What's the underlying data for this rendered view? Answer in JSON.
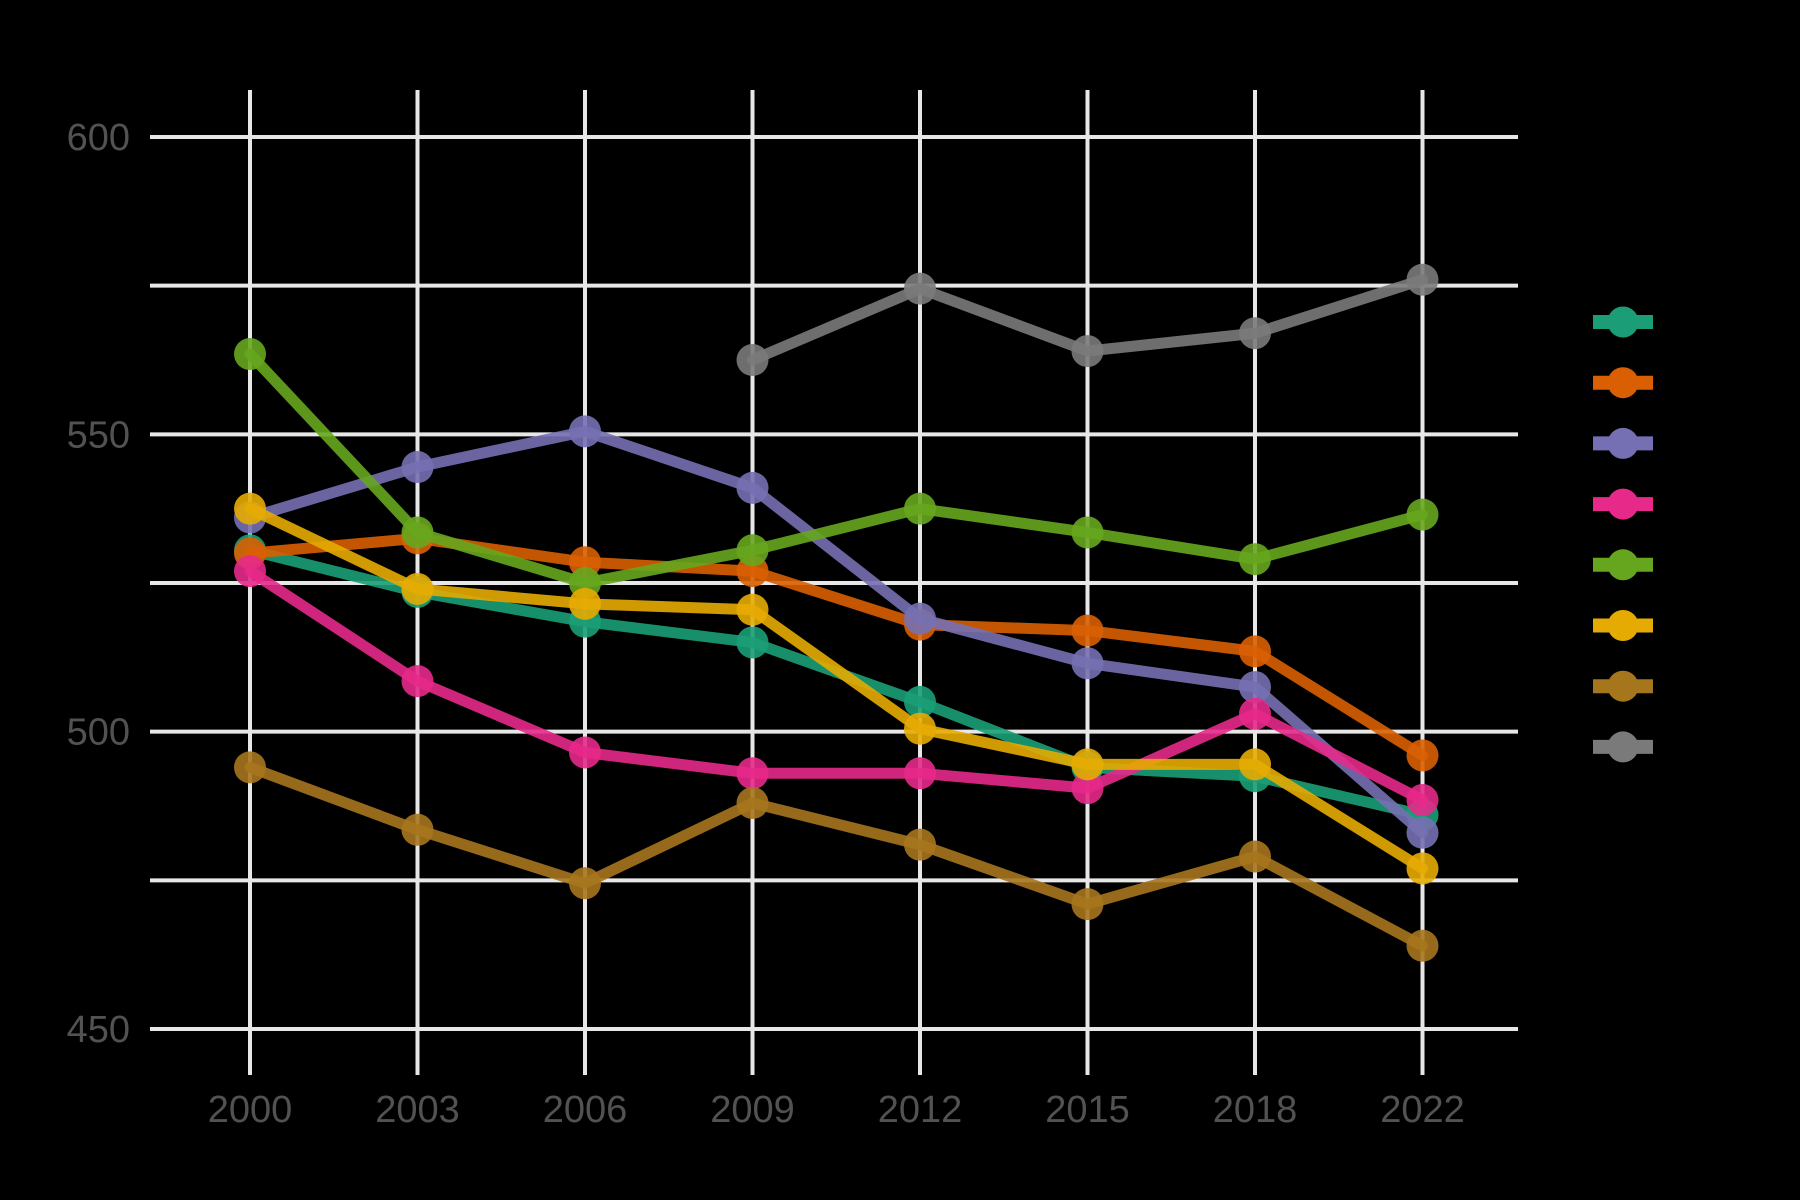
{
  "figure": {
    "background_color": "#000000",
    "gridline_color": "#e7e7e7",
    "axis_text_color": "#525252"
  },
  "axes": {
    "x": {
      "tick_labels": [
        "2000",
        "2003",
        "2006",
        "2009",
        "2012",
        "2015",
        "2018",
        "2022"
      ]
    },
    "y": {
      "tick_labels": [
        "600",
        "550",
        "500",
        "450"
      ],
      "tick_values": [
        600,
        550,
        500,
        450
      ],
      "gridline_values": [
        600,
        575,
        550,
        525,
        500,
        475,
        450
      ]
    }
  },
  "legend": {
    "position": "right",
    "labels_visible": false,
    "items": [
      {
        "name": "teal",
        "color": "#1B9E77"
      },
      {
        "name": "orange",
        "color": "#D95F02"
      },
      {
        "name": "purple",
        "color": "#7570B3"
      },
      {
        "name": "magenta",
        "color": "#E7298A"
      },
      {
        "name": "green",
        "color": "#66A61E"
      },
      {
        "name": "yellow",
        "color": "#E6AB02"
      },
      {
        "name": "brown",
        "color": "#A6761D"
      },
      {
        "name": "gray",
        "color": "#7A7A7A"
      }
    ]
  },
  "chart_data": {
    "type": "line",
    "title": "",
    "xlabel": "",
    "ylabel": "",
    "x": [
      2000,
      2003,
      2006,
      2009,
      2012,
      2015,
      2018,
      2022
    ],
    "ylim": [
      440,
      608
    ],
    "grid": true,
    "legend_position": "right",
    "marker": "circle",
    "series": [
      {
        "name": "teal",
        "color": "#1B9E77",
        "values": [
          530.5,
          523.5,
          518.5,
          515,
          505,
          494,
          492.5,
          486
        ]
      },
      {
        "name": "orange",
        "color": "#D95F02",
        "values": [
          530,
          532.5,
          528.5,
          527,
          518,
          517,
          513.5,
          496
        ]
      },
      {
        "name": "purple",
        "color": "#7570B3",
        "values": [
          536,
          544.5,
          550.5,
          541,
          519,
          511.5,
          507.5,
          483
        ]
      },
      {
        "name": "magenta",
        "color": "#E7298A",
        "values": [
          527,
          508.5,
          496.5,
          493,
          493,
          490.5,
          503,
          488.5
        ]
      },
      {
        "name": "green",
        "color": "#66A61E",
        "values": [
          563.5,
          533.5,
          525,
          530.5,
          537.5,
          533.5,
          529,
          536.5
        ]
      },
      {
        "name": "yellow",
        "color": "#E6AB02",
        "values": [
          537.5,
          524,
          521.5,
          520.5,
          500.5,
          494.5,
          494.5,
          477
        ]
      },
      {
        "name": "brown",
        "color": "#A6761D",
        "values": [
          494,
          483.5,
          474.5,
          488,
          481,
          471,
          479,
          464
        ]
      },
      {
        "name": "gray",
        "color": "#7A7A7A",
        "values": [
          null,
          null,
          null,
          562.5,
          574.5,
          564,
          567,
          576
        ]
      }
    ]
  }
}
